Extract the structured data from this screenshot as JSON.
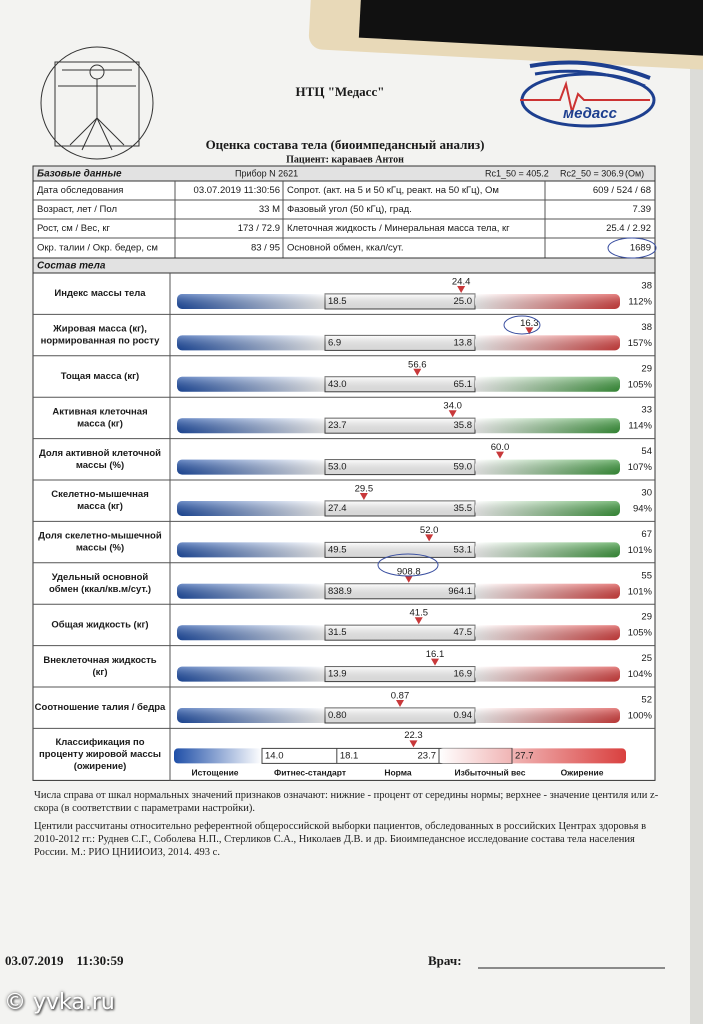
{
  "header": {
    "org": "НТЦ \"Медасс\"",
    "logo_text": "медасс",
    "title": "Оценка состава тела (биоимпедансный анализ)",
    "patient": "Пациент: караваев  Антон"
  },
  "base": {
    "label": "Базовые данные",
    "device": "Прибор N 2621",
    "rc1": "Rc1_50 = 405.2",
    "rc2": "Rc2_50 = 306.9",
    "unit": "(Ом)",
    "rows": [
      [
        "Дата обследования",
        "03.07.2019 11:30:56",
        "Сопрот. (акт. на 5 и 50 кГц, реакт. на 50 кГц), Ом",
        "609 / 524 / 68"
      ],
      [
        "Возраст, лет / Пол",
        "33 М",
        "Фазовый угол (50 кГц), град.",
        "7.39"
      ],
      [
        "Рост, см / Вес, кг",
        "173 / 72.9",
        "Клеточная жидкость / Минеральная масса тела, кг",
        "25.4 / 2.92"
      ],
      [
        "Окр. талии / Окр. бедер, см",
        "83 / 95",
        "Основной обмен, ккал/сут.",
        "1689"
      ]
    ]
  },
  "composition": {
    "label": "Состав тела",
    "indicators": [
      {
        "label": [
          "Индекс массы тела"
        ],
        "marker": "24.4",
        "low": "18.5",
        "high": "25.0",
        "centile": "38",
        "percent": "112%",
        "color": "#d9403f"
      },
      {
        "label": [
          "Жировая масса (кг),",
          "нормированная по росту"
        ],
        "marker": "16.3",
        "low": "6.9",
        "high": "13.8",
        "centile": "38",
        "percent": "157%",
        "color": "#d9403f"
      },
      {
        "label": [
          "Тощая масса (кг)"
        ],
        "marker": "56.6",
        "low": "43.0",
        "high": "65.1",
        "centile": "29",
        "percent": "105%",
        "color": "#3c9a3c"
      },
      {
        "label": [
          "Активная клеточная",
          "масса (кг)"
        ],
        "marker": "34.0",
        "low": "23.7",
        "high": "35.8",
        "centile": "33",
        "percent": "114%",
        "color": "#3c9a3c"
      },
      {
        "label": [
          "Доля активной клеточной",
          "массы (%)"
        ],
        "marker": "60.0",
        "low": "53.0",
        "high": "59.0",
        "centile": "54",
        "percent": "107%",
        "color": "#3c9a3c"
      },
      {
        "label": [
          "Скелетно-мышечная",
          "масса (кг)"
        ],
        "marker": "29.5",
        "low": "27.4",
        "high": "35.5",
        "centile": "30",
        "percent": "94%",
        "color": "#3c9a3c"
      },
      {
        "label": [
          "Доля скелетно-мышечной",
          "массы (%)"
        ],
        "marker": "52.0",
        "low": "49.5",
        "high": "53.1",
        "centile": "67",
        "percent": "101%",
        "color": "#3c9a3c"
      },
      {
        "label": [
          "Удельный основной",
          "обмен (ккал/кв.м/сут.)"
        ],
        "marker": "908.8",
        "low": "838.9",
        "high": "964.1",
        "centile": "55",
        "percent": "101%",
        "color": "#d9403f"
      },
      {
        "label": [
          "Общая жидкость (кг)"
        ],
        "marker": "41.5",
        "low": "31.5",
        "high": "47.5",
        "centile": "29",
        "percent": "105%",
        "color": "#d9403f"
      },
      {
        "label": [
          "Внеклеточная жидкость",
          "(кг)"
        ],
        "marker": "16.1",
        "low": "13.9",
        "high": "16.9",
        "centile": "25",
        "percent": "104%",
        "color": "#d9403f"
      },
      {
        "label": [
          "Соотношение талия / бедра"
        ],
        "marker": "0.87",
        "low": "0.80",
        "high": "0.94",
        "centile": "52",
        "percent": "100%",
        "color": "#d9403f"
      }
    ],
    "classification": {
      "label": [
        "Классификация по",
        "проценту жировой массы",
        "(ожирение)"
      ],
      "marker": "22.3",
      "thresholds": [
        "14.0",
        "18.1",
        "23.7",
        "27.7"
      ],
      "categories": [
        "Истощение",
        "Фитнес-стандарт",
        "Норма",
        "Избыточный вес",
        "Ожирение"
      ]
    }
  },
  "notes": [
    "Числа справа от шкал нормальных значений признаков означают: нижние - процент от середины нормы; верхнее - значение центиля или z-скора (в соответствии с параметрами настройки).",
    "Центили рассчитаны относительно референтной общероссийской выборки пациентов, обследованных в российских Центрах здоровья в 2010-2012 гг.: Руднев С.Г., Соболева Н.П., Стерликов С.А., Николаев Д.В. и др. Биоимпедансное исследование состава тела населения России. М.: РИО ЦНИИОИЗ, 2014. 493 с."
  ],
  "footer": {
    "datetime": "03.07.2019    11:30:59",
    "doctor": "Врач:"
  },
  "watermark": "© yvka.ru"
}
